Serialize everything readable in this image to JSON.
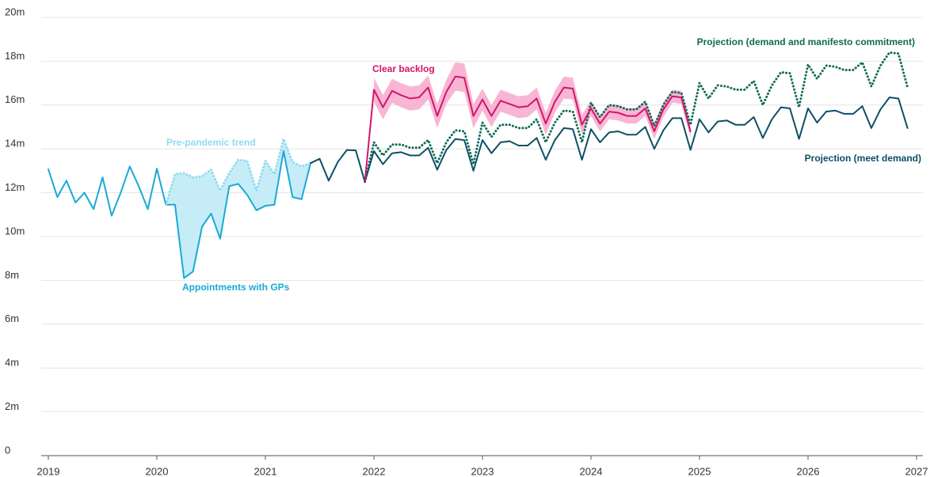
{
  "chart_data": {
    "type": "line",
    "x": [
      2019,
      2019.083,
      2019.167,
      2019.25,
      2019.333,
      2019.417,
      2019.5,
      2019.583,
      2019.667,
      2019.75,
      2019.833,
      2019.917,
      2020,
      2020.083,
      2020.167,
      2020.25,
      2020.333,
      2020.417,
      2020.5,
      2020.583,
      2020.667,
      2020.75,
      2020.833,
      2020.917,
      2021,
      2021.083,
      2021.167,
      2021.25,
      2021.333,
      2021.417,
      2021.5,
      2021.583,
      2021.667,
      2021.75,
      2021.833,
      2021.917,
      2022,
      2022.083,
      2022.167,
      2022.25,
      2022.333,
      2022.417,
      2022.5,
      2022.583,
      2022.667,
      2022.75,
      2022.833,
      2022.917,
      2023,
      2023.083,
      2023.167,
      2023.25,
      2023.333,
      2023.417,
      2023.5,
      2023.583,
      2023.667,
      2023.75,
      2023.833,
      2023.917,
      2024,
      2024.083,
      2024.167,
      2024.25,
      2024.333,
      2024.417,
      2024.5,
      2024.583,
      2024.667,
      2024.75,
      2024.833,
      2024.917,
      2025,
      2025.083,
      2025.167,
      2025.25,
      2025.333,
      2025.417,
      2025.5,
      2025.583,
      2025.667,
      2025.75,
      2025.833,
      2025.917,
      2026,
      2026.083,
      2026.167,
      2026.25,
      2026.333,
      2026.417,
      2026.5,
      2026.583,
      2026.667,
      2026.75,
      2026.833,
      2026.917
    ],
    "xlim": [
      2019,
      2027
    ],
    "xticks": [
      2019,
      2020,
      2021,
      2022,
      2023,
      2024,
      2025,
      2026,
      2027
    ],
    "ylim": [
      0,
      20
    ],
    "yticks": [
      0,
      {
        "value": 2,
        "label": "2m"
      },
      {
        "value": 4,
        "label": "4m"
      },
      {
        "value": 6,
        "label": "6m"
      },
      {
        "value": 8,
        "label": "8m"
      },
      {
        "value": 10,
        "label": "10m"
      },
      {
        "value": 12,
        "label": "12m"
      },
      {
        "value": 14,
        "label": "14m"
      },
      {
        "value": 16,
        "label": "16m"
      },
      {
        "value": 18,
        "label": "18m"
      },
      {
        "value": 20,
        "label": "20m"
      }
    ],
    "grid": true,
    "gap_fill": "#c6ecf7",
    "series": [
      {
        "name": "Appointments with GPs",
        "color": "#1aa9d6",
        "style": "solid",
        "values": [
          13.07,
          11.8,
          12.55,
          11.55,
          12,
          11.25,
          12.7,
          10.95,
          12,
          13.2,
          12.3,
          11.25,
          13.1,
          11.45,
          11.45,
          8.1,
          8.4,
          10.45,
          11.05,
          9.9,
          12.3,
          12.4,
          11.9,
          11.2,
          11.4,
          11.45,
          13.9,
          11.8,
          11.7,
          13.35,
          null,
          null,
          null,
          null,
          null,
          null,
          null,
          null,
          null,
          null,
          null,
          null,
          null,
          null,
          null,
          null,
          null,
          null,
          null,
          null,
          null,
          null,
          null,
          null,
          null,
          null,
          null,
          null,
          null,
          null,
          null,
          null,
          null,
          null,
          null,
          null,
          null,
          null,
          null,
          null,
          null,
          null,
          null,
          null,
          null,
          null,
          null,
          null,
          null,
          null,
          null,
          null,
          null,
          null,
          null,
          null,
          null,
          null,
          null,
          null,
          null,
          null,
          null,
          null,
          null,
          null
        ]
      },
      {
        "name": "Pre-pandemic trend",
        "color": "#8fdcef",
        "style": "dotted",
        "values": [
          null,
          null,
          null,
          null,
          null,
          null,
          null,
          null,
          null,
          null,
          null,
          null,
          null,
          11.45,
          12.85,
          12.9,
          12.7,
          12.75,
          13.05,
          12.1,
          12.9,
          13.5,
          13.45,
          12.1,
          13.45,
          12.85,
          14.45,
          13.4,
          13.2,
          13.35,
          null,
          null,
          null,
          null,
          null,
          null,
          null,
          null,
          null,
          null,
          null,
          null,
          null,
          null,
          null,
          null,
          null,
          null,
          null,
          null,
          null,
          null,
          null,
          null,
          null,
          null,
          null,
          null,
          null,
          null,
          null,
          null,
          null,
          null,
          null,
          null,
          null,
          null,
          null,
          null,
          null,
          null,
          null,
          null,
          null,
          null,
          null,
          null,
          null,
          null,
          null,
          null,
          null,
          null,
          null,
          null,
          null,
          null,
          null,
          null,
          null,
          null,
          null,
          null,
          null,
          null
        ]
      },
      {
        "name": "Projection (meet demand)",
        "color": "#0d4f66",
        "style": "solid",
        "values": [
          null,
          null,
          null,
          null,
          null,
          null,
          null,
          null,
          null,
          null,
          null,
          null,
          null,
          null,
          null,
          null,
          null,
          null,
          null,
          null,
          null,
          null,
          null,
          null,
          null,
          null,
          null,
          null,
          null,
          13.35,
          13.55,
          12.55,
          13.4,
          13.95,
          13.93,
          12.5,
          13.9,
          13.3,
          13.8,
          13.85,
          13.7,
          13.7,
          14.05,
          13.05,
          13.95,
          14.45,
          14.4,
          13.0,
          14.4,
          13.8,
          14.3,
          14.35,
          14.15,
          14.15,
          14.5,
          13.5,
          14.4,
          14.95,
          14.9,
          13.5,
          14.9,
          14.3,
          14.75,
          14.8,
          14.65,
          14.65,
          15.0,
          14.0,
          14.85,
          15.4,
          15.4,
          13.95,
          15.35,
          14.75,
          15.25,
          15.3,
          15.1,
          15.1,
          15.45,
          14.5,
          15.35,
          15.9,
          15.85,
          14.45,
          15.85,
          15.2,
          15.7,
          15.75,
          15.6,
          15.6,
          15.95,
          14.95,
          15.8,
          16.35,
          16.3,
          14.95
        ]
      },
      {
        "name": "Projection (demand and manifesto commitment)",
        "color": "#0e6b55",
        "style": "dotted",
        "values": [
          null,
          null,
          null,
          null,
          null,
          null,
          null,
          null,
          null,
          null,
          null,
          null,
          null,
          null,
          null,
          null,
          null,
          null,
          null,
          null,
          null,
          null,
          null,
          null,
          null,
          null,
          null,
          null,
          null,
          null,
          null,
          null,
          null,
          null,
          null,
          12.5,
          14.3,
          13.7,
          14.2,
          14.2,
          14.05,
          14.05,
          14.4,
          13.35,
          14.3,
          14.85,
          14.8,
          13.3,
          15.2,
          14.55,
          15.1,
          15.1,
          14.95,
          14.95,
          15.35,
          14.3,
          15.2,
          15.75,
          15.7,
          14.3,
          16.1,
          15.45,
          16.0,
          15.95,
          15.8,
          15.8,
          16.15,
          15.05,
          16.0,
          16.6,
          16.55,
          15.1,
          17.0,
          16.3,
          16.9,
          16.85,
          16.7,
          16.7,
          17.1,
          16.0,
          16.9,
          17.5,
          17.45,
          15.9,
          17.85,
          17.2,
          17.8,
          17.75,
          17.6,
          17.6,
          17.95,
          16.85,
          17.8,
          18.4,
          18.35,
          16.8
        ]
      },
      {
        "name": "Clear backlog",
        "color": "#d4136b",
        "band_color": "#f8b6d4",
        "style": "solid",
        "values": [
          null,
          null,
          null,
          null,
          null,
          null,
          null,
          null,
          null,
          null,
          null,
          null,
          null,
          null,
          null,
          null,
          null,
          null,
          null,
          null,
          null,
          null,
          null,
          null,
          null,
          null,
          null,
          null,
          null,
          null,
          null,
          null,
          null,
          null,
          null,
          12.5,
          16.7,
          15.9,
          16.65,
          16.45,
          16.3,
          16.35,
          16.8,
          15.5,
          16.6,
          17.3,
          17.25,
          15.5,
          16.25,
          15.5,
          16.2,
          16.05,
          15.9,
          15.95,
          16.3,
          15.15,
          16.15,
          16.8,
          16.75,
          15.1,
          15.85,
          15.15,
          15.7,
          15.65,
          15.5,
          15.5,
          15.85,
          14.8,
          15.8,
          16.4,
          16.35,
          14.8,
          null,
          null,
          null,
          null,
          null,
          null,
          null,
          null,
          null,
          null,
          null,
          null,
          null,
          null,
          null,
          null,
          null,
          null,
          null,
          null,
          null,
          null,
          null,
          null
        ],
        "upper": [
          null,
          null,
          null,
          null,
          null,
          null,
          null,
          null,
          null,
          null,
          null,
          null,
          null,
          null,
          null,
          null,
          null,
          null,
          null,
          null,
          null,
          null,
          null,
          null,
          null,
          null,
          null,
          null,
          null,
          null,
          null,
          null,
          null,
          null,
          null,
          null,
          17.25,
          16.45,
          17.2,
          17.0,
          16.85,
          16.9,
          17.35,
          16.05,
          17.15,
          17.95,
          17.9,
          16.05,
          16.75,
          16.0,
          16.7,
          16.55,
          16.4,
          16.45,
          16.8,
          15.65,
          16.65,
          17.3,
          17.25,
          15.55,
          16.2,
          15.5,
          16.05,
          16.0,
          15.85,
          15.85,
          16.2,
          15.15,
          16.15,
          16.7,
          16.65,
          15.1,
          null,
          null,
          null,
          null,
          null,
          null,
          null,
          null,
          null,
          null,
          null,
          null,
          null,
          null,
          null,
          null,
          null,
          null,
          null,
          null,
          null,
          null,
          null,
          null
        ],
        "lower": [
          null,
          null,
          null,
          null,
          null,
          null,
          null,
          null,
          null,
          null,
          null,
          null,
          null,
          null,
          null,
          null,
          null,
          null,
          null,
          null,
          null,
          null,
          null,
          null,
          null,
          null,
          null,
          null,
          null,
          null,
          null,
          null,
          null,
          null,
          null,
          null,
          16.15,
          15.35,
          16.1,
          15.9,
          15.75,
          15.8,
          16.25,
          14.95,
          16.05,
          16.65,
          16.6,
          14.95,
          15.75,
          15.0,
          15.7,
          15.55,
          15.4,
          15.45,
          15.8,
          14.65,
          15.65,
          16.3,
          16.25,
          14.65,
          15.5,
          14.8,
          15.35,
          15.3,
          15.15,
          15.15,
          15.5,
          14.45,
          15.45,
          16.1,
          16.05,
          14.5,
          null,
          null,
          null,
          null,
          null,
          null,
          null,
          null,
          null,
          null,
          null,
          null,
          null,
          null,
          null,
          null,
          null,
          null,
          null,
          null,
          null,
          null,
          null,
          null
        ]
      }
    ]
  }
}
